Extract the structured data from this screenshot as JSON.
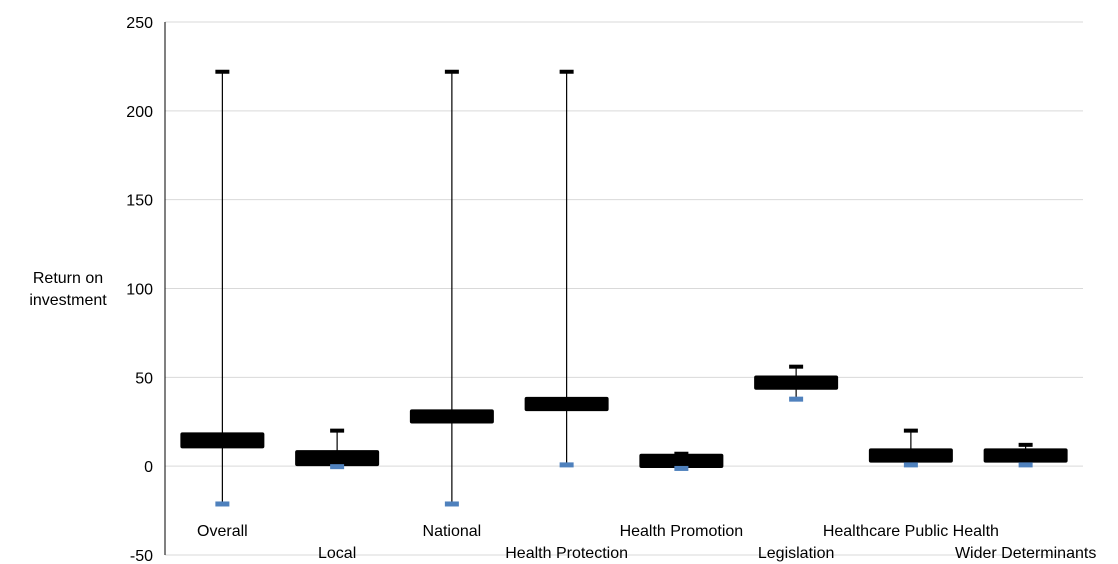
{
  "chart_data": {
    "type": "box",
    "ylabel": [
      "Return on",
      "investment"
    ],
    "ylim": [
      -50,
      250
    ],
    "yticks": [
      -50,
      0,
      50,
      100,
      150,
      200,
      250
    ],
    "grid": true,
    "colors": {
      "box": "#000000",
      "whisker": "#000000",
      "max_marker": "#000000",
      "min_marker": "#4f81bd",
      "grid": "#d9d9d9"
    },
    "categories": [
      "Overall",
      "Local",
      "National",
      "Health Protection",
      "Health Promotion",
      "Legislation",
      "Healthcare Public Health",
      "Wider Determinants"
    ],
    "label_rows": [
      1,
      2,
      1,
      2,
      1,
      2,
      1,
      2
    ],
    "boxes": [
      {
        "category": "Overall",
        "min": -21,
        "q1": 10,
        "q3": 19,
        "max": 222
      },
      {
        "category": "Local",
        "min": 0,
        "q1": 0,
        "q3": 9,
        "max": 20
      },
      {
        "category": "National",
        "min": -21,
        "q1": 24,
        "q3": 32,
        "max": 222
      },
      {
        "category": "Health Protection",
        "min": 1,
        "q1": 31,
        "q3": 39,
        "max": 222
      },
      {
        "category": "Health Promotion",
        "min": -1,
        "q1": -1,
        "q3": 7,
        "max": 7
      },
      {
        "category": "Legislation",
        "min": 38,
        "q1": 43,
        "q3": 51,
        "max": 56
      },
      {
        "category": "Healthcare Public Health",
        "min": 1,
        "q1": 2,
        "q3": 10,
        "max": 20
      },
      {
        "category": "Wider Determinants",
        "min": 1,
        "q1": 2,
        "q3": 10,
        "max": 12
      }
    ]
  }
}
